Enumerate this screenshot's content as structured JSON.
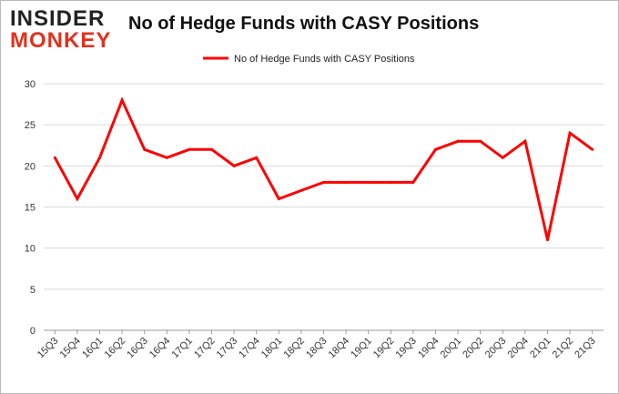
{
  "logo": {
    "line1": "INSIDER",
    "line2": "MONKEY"
  },
  "chart_data": {
    "type": "line",
    "title": "No of Hedge Funds with CASY Positions",
    "xlabel": "",
    "ylabel": "",
    "categories": [
      "15Q3",
      "15Q4",
      "16Q1",
      "16Q2",
      "16Q3",
      "16Q4",
      "17Q1",
      "17Q2",
      "17Q3",
      "17Q4",
      "18Q1",
      "18Q2",
      "18Q3",
      "18Q4",
      "19Q1",
      "19Q2",
      "19Q3",
      "19Q4",
      "20Q1",
      "20Q2",
      "20Q3",
      "20Q4",
      "21Q1",
      "21Q2",
      "21Q3"
    ],
    "series": [
      {
        "name": "No of Hedge Funds with CASY Positions",
        "color": "#ff0000",
        "values": [
          21,
          16,
          21,
          28,
          22,
          21,
          22,
          22,
          20,
          21,
          16,
          17,
          18,
          18,
          18,
          18,
          18,
          22,
          23,
          23,
          21,
          23,
          11,
          24,
          22
        ]
      }
    ],
    "ylim": [
      0,
      30
    ],
    "yticks": [
      0,
      5,
      10,
      15,
      20,
      25,
      30
    ],
    "grid": true,
    "legend": "top-center"
  }
}
